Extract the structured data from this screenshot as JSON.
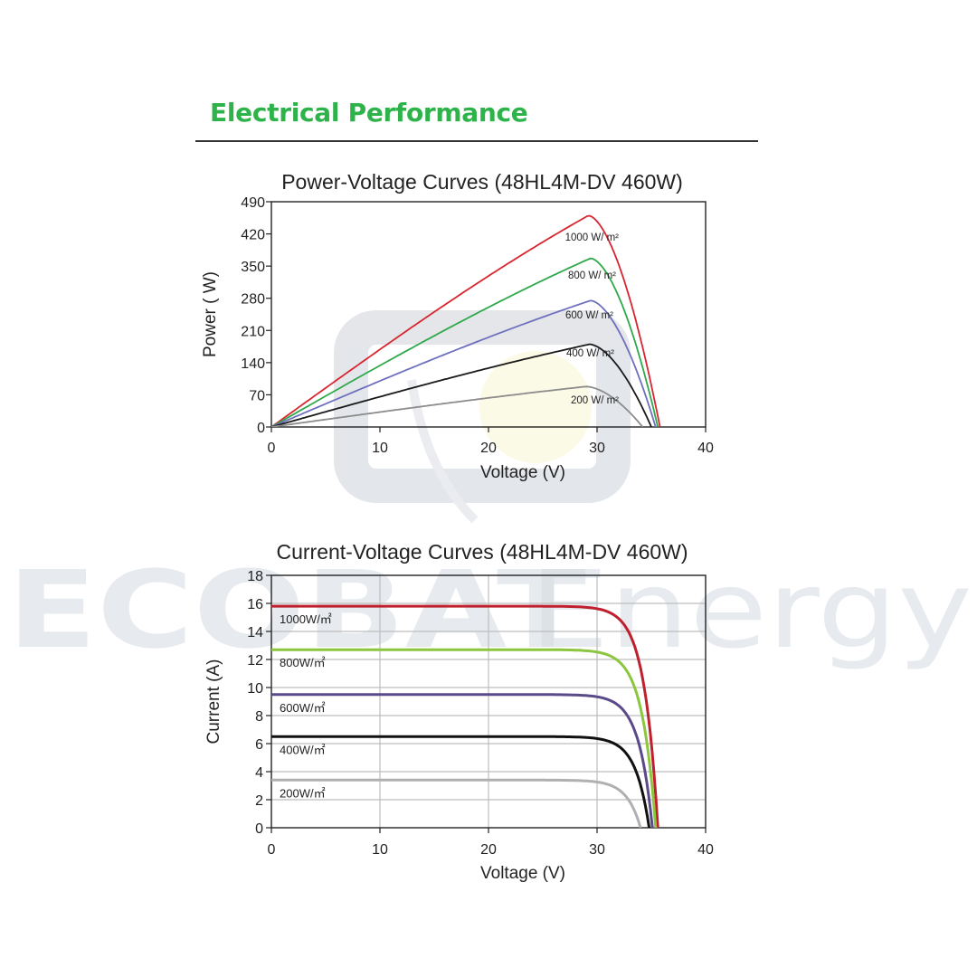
{
  "heading": "Electrical Performance",
  "watermark": {
    "brand_bold": "ECOBAT",
    "brand_light": "Energy"
  },
  "colors": {
    "heading": "#2eb24a"
  },
  "chart_data": [
    {
      "type": "line",
      "title": "Power-Voltage Curves (48HL4M-DV 460W)",
      "xlabel": "Voltage (V)",
      "ylabel": "Power ( W)",
      "xlim": [
        0,
        40
      ],
      "ylim": [
        0,
        490
      ],
      "xticks": [
        0,
        10,
        20,
        30,
        40
      ],
      "yticks": [
        0,
        70,
        140,
        210,
        280,
        350,
        420,
        490
      ],
      "series": [
        {
          "name": "1000 W/ m²",
          "color": "#d8252f",
          "vmp": 29.2,
          "pmax": 460,
          "voc": 35.8
        },
        {
          "name": "800 W/ m²",
          "color": "#2ea84a",
          "vmp": 29.4,
          "pmax": 367,
          "voc": 35.6
        },
        {
          "name": "600 W/ m²",
          "color": "#6f6fbf",
          "vmp": 29.4,
          "pmax": 275,
          "voc": 35.4
        },
        {
          "name": "400 W/ m²",
          "color": "#1a1a1a",
          "vmp": 29.3,
          "pmax": 180,
          "voc": 35.0
        },
        {
          "name": "200 W/ m²",
          "color": "#8c8c8c",
          "vmp": 29.0,
          "pmax": 88,
          "voc": 34.2
        }
      ]
    },
    {
      "type": "line",
      "title": "Current-Voltage Curves (48HL4M-DV 460W)",
      "xlabel": "Voltage (V)",
      "ylabel": "Current (A)",
      "xlim": [
        0,
        40
      ],
      "ylim": [
        0,
        18
      ],
      "xticks": [
        0,
        10,
        20,
        30,
        40
      ],
      "yticks": [
        0,
        2,
        4,
        6,
        8,
        10,
        12,
        14,
        16,
        18
      ],
      "grid": true,
      "series": [
        {
          "name": "1000W/㎡",
          "color": "#c0202e",
          "isc": 15.8,
          "voc": 35.6
        },
        {
          "name": "800W/㎡",
          "color": "#8cc63f",
          "isc": 12.7,
          "voc": 35.4
        },
        {
          "name": "600W/㎡",
          "color": "#5a4a8a",
          "isc": 9.5,
          "voc": 35.1
        },
        {
          "name": "400W/㎡",
          "color": "#111111",
          "isc": 6.5,
          "voc": 34.8
        },
        {
          "name": "200W/㎡",
          "color": "#b0b0b0",
          "isc": 3.4,
          "voc": 34.0
        }
      ]
    }
  ]
}
